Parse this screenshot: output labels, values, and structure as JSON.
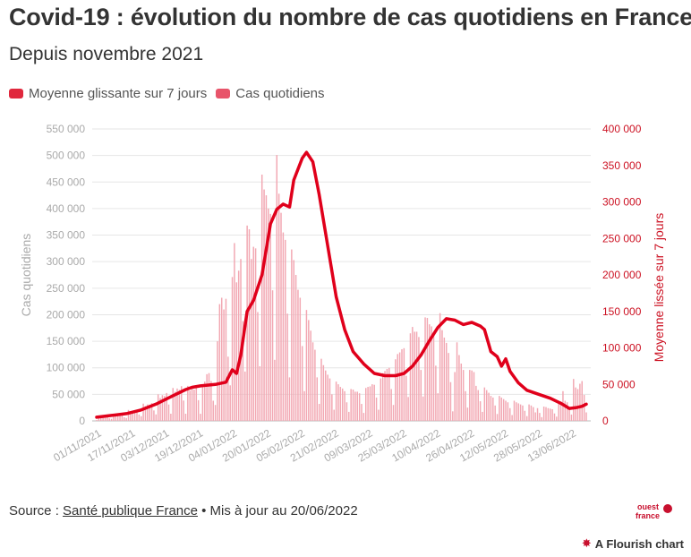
{
  "header": {
    "title": "Covid-19 : évolution du nombre de cas quotidiens en France",
    "subtitle": "Depuis novembre 2021"
  },
  "legend": [
    {
      "label": "Moyenne glissante sur 7 jours",
      "color": "#e0283d"
    },
    {
      "label": "Cas quotidiens",
      "color": "#e8546a"
    }
  ],
  "footer": {
    "source_prefix": "Source : ",
    "source_link": "Santé publique France",
    "updated": " • Mis à jour au 20/06/2022",
    "logo_top": "ouest",
    "logo_bottom": "france",
    "flourish": "A Flourish chart"
  },
  "chart_data": {
    "type": "bar+line",
    "colors": {
      "bars": "#f2a7b2",
      "line": "#e0001b",
      "left_axis": "#aaaaaa",
      "right_axis": "#cc1122"
    },
    "y_left": {
      "label": "Cas quotidiens",
      "range": [
        0,
        550000
      ],
      "ticks": [
        0,
        50000,
        100000,
        150000,
        200000,
        250000,
        300000,
        350000,
        400000,
        450000,
        500000,
        550000
      ],
      "tick_labels": [
        "0",
        "50 000",
        "100 000",
        "150 000",
        "200 000",
        "250 000",
        "300 000",
        "350 000",
        "400 000",
        "450 000",
        "500 000",
        "550 000"
      ]
    },
    "y_right": {
      "label": "Moyenne lissée sur 7 jours",
      "range": [
        0,
        400000
      ],
      "ticks": [
        0,
        50000,
        100000,
        150000,
        200000,
        250000,
        300000,
        350000,
        400000
      ],
      "tick_labels": [
        "0",
        "50 000",
        "100 000",
        "150 000",
        "200 000",
        "250 000",
        "300 000",
        "350 000",
        "400 000"
      ]
    },
    "x": {
      "start": "2021-11-01",
      "end": "2022-06-20",
      "tick_labels": [
        "01/11/2021",
        "17/11/2021",
        "03/12/2021",
        "19/12/2021",
        "04/01/2022",
        "20/01/2022",
        "05/02/2022",
        "21/02/2022",
        "09/03/2022",
        "25/03/2022",
        "10/04/2022",
        "26/04/2022",
        "12/05/2022",
        "28/05/2022",
        "13/06/2022"
      ]
    },
    "daily_cases_weekly": [
      {
        "date": "2021-11-01",
        "values": [
          1500,
          8800,
          7500,
          7200,
          6800,
          7900,
          4900
        ]
      },
      {
        "date": "2021-11-08",
        "values": [
          3800,
          12800,
          10000,
          10800,
          10900,
          11300,
          6800
        ]
      },
      {
        "date": "2021-11-15",
        "values": [
          5500,
          20600,
          17100,
          18900,
          19000,
          19700,
          12000
        ]
      },
      {
        "date": "2021-11-22",
        "values": [
          8800,
          32500,
          28000,
          31000,
          30700,
          33500,
          19700
        ]
      },
      {
        "date": "2021-11-29",
        "values": [
          12200,
          50000,
          43000,
          48500,
          46800,
          52500,
          30800
        ]
      },
      {
        "date": "2021-12-06",
        "values": [
          13500,
          62000,
          55000,
          61000,
          58400,
          65400,
          38300
        ]
      },
      {
        "date": "2021-12-13",
        "values": [
          13500,
          66000,
          57000,
          63800,
          59000,
          67000,
          39000
        ]
      },
      {
        "date": "2021-12-20",
        "values": [
          13300,
          68000,
          74000,
          88000,
          90000,
          75000,
          38000
        ]
      },
      {
        "date": "2021-12-27",
        "values": [
          30000,
          150000,
          220000,
          232000,
          210000,
          230000,
          121000
        ]
      },
      {
        "date": "2022-01-03",
        "values": [
          67000,
          271000,
          335000,
          261000,
          283000,
          305000,
          188000
        ]
      },
      {
        "date": "2022-01-10",
        "values": [
          93000,
          368000,
          361000,
          305000,
          328000,
          325000,
          205000
        ]
      },
      {
        "date": "2022-01-17",
        "values": [
          103000,
          464000,
          436000,
          425000,
          400000,
          390000,
          246000
        ]
      },
      {
        "date": "2022-01-24",
        "values": [
          115000,
          501000,
          428000,
          392000,
          355000,
          341000,
          202000
        ]
      },
      {
        "date": "2022-01-31",
        "values": [
          82000,
          323000,
          303000,
          275000,
          247000,
          232000,
          141000
        ]
      },
      {
        "date": "2022-02-07",
        "values": [
          56000,
          209000,
          190000,
          170000,
          148000,
          134000,
          82000
        ]
      },
      {
        "date": "2022-02-14",
        "values": [
          32000,
          117000,
          105000,
          95000,
          87000,
          80000,
          50000
        ]
      },
      {
        "date": "2022-02-21",
        "values": [
          21000,
          74000,
          69000,
          64000,
          61000,
          56000,
          35000
        ]
      },
      {
        "date": "2022-02-28",
        "values": [
          17000,
          60000,
          59000,
          55000,
          55000,
          52000,
          32000
        ]
      },
      {
        "date": "2022-03-07",
        "values": [
          15000,
          62000,
          64000,
          65000,
          69000,
          68000,
          44000
        ]
      },
      {
        "date": "2022-03-14",
        "values": [
          21000,
          80000,
          90000,
          94000,
          98000,
          100000,
          60000
        ]
      },
      {
        "date": "2022-03-21",
        "values": [
          30000,
          116000,
          126000,
          129000,
          135000,
          137000,
          85000
        ]
      },
      {
        "date": "2022-03-28",
        "values": [
          45000,
          165000,
          177000,
          168000,
          168000,
          158000,
          96000
        ]
      },
      {
        "date": "2022-04-04",
        "values": [
          46000,
          195000,
          194000,
          182000,
          178000,
          166000,
          104000
        ]
      },
      {
        "date": "2022-04-11",
        "values": [
          52000,
          203000,
          171000,
          157000,
          147000,
          128000,
          73000
        ]
      },
      {
        "date": "2022-04-18",
        "values": [
          18000,
          92000,
          148000,
          124000,
          108000,
          96000,
          56000
        ]
      },
      {
        "date": "2022-04-25",
        "values": [
          25000,
          96000,
          95000,
          92000,
          66000,
          58000,
          37000
        ]
      },
      {
        "date": "2022-05-02",
        "values": [
          17000,
          63000,
          58000,
          53000,
          47000,
          44000,
          29000
        ]
      },
      {
        "date": "2022-05-09",
        "values": [
          13000,
          47000,
          44000,
          41000,
          38000,
          35000,
          24000
        ]
      },
      {
        "date": "2022-05-16",
        "values": [
          11000,
          38000,
          35000,
          33000,
          31000,
          29000,
          19000
        ]
      },
      {
        "date": "2022-05-23",
        "values": [
          9000,
          31000,
          29000,
          26000,
          16000,
          24000,
          15000
        ]
      },
      {
        "date": "2022-05-30",
        "values": [
          7000,
          27000,
          26000,
          24000,
          23000,
          22000,
          14000
        ]
      },
      {
        "date": "2022-06-06",
        "values": [
          8000,
          32000,
          37000,
          56000,
          38000,
          35000,
          22000
        ]
      },
      {
        "date": "2022-06-13",
        "values": [
          12000,
          79000,
          63000,
          60000,
          70000,
          75000,
          49000
        ]
      },
      {
        "date": "2022-06-20",
        "values": [
          16000
        ]
      }
    ],
    "moving_average": [
      {
        "date": "2021-11-01",
        "value": 5000
      },
      {
        "date": "2021-11-08",
        "value": 7500
      },
      {
        "date": "2021-11-15",
        "value": 10000
      },
      {
        "date": "2021-11-22",
        "value": 15000
      },
      {
        "date": "2021-11-29",
        "value": 23000
      },
      {
        "date": "2021-12-06",
        "value": 33000
      },
      {
        "date": "2021-12-13",
        "value": 43000
      },
      {
        "date": "2021-12-16",
        "value": 46000
      },
      {
        "date": "2021-12-20",
        "value": 48000
      },
      {
        "date": "2021-12-27",
        "value": 50000
      },
      {
        "date": "2022-01-01",
        "value": 53000
      },
      {
        "date": "2022-01-04",
        "value": 70000
      },
      {
        "date": "2022-01-06",
        "value": 65000
      },
      {
        "date": "2022-01-08",
        "value": 90000
      },
      {
        "date": "2022-01-11",
        "value": 150000
      },
      {
        "date": "2022-01-14",
        "value": 165000
      },
      {
        "date": "2022-01-18",
        "value": 200000
      },
      {
        "date": "2022-01-22",
        "value": 270000
      },
      {
        "date": "2022-01-25",
        "value": 290000
      },
      {
        "date": "2022-01-28",
        "value": 297000
      },
      {
        "date": "2022-01-31",
        "value": 293000
      },
      {
        "date": "2022-02-02",
        "value": 330000
      },
      {
        "date": "2022-02-06",
        "value": 360000
      },
      {
        "date": "2022-02-08",
        "value": 368000
      },
      {
        "date": "2022-02-11",
        "value": 355000
      },
      {
        "date": "2022-02-14",
        "value": 310000
      },
      {
        "date": "2022-02-18",
        "value": 240000
      },
      {
        "date": "2022-02-22",
        "value": 170000
      },
      {
        "date": "2022-02-26",
        "value": 125000
      },
      {
        "date": "2022-03-02",
        "value": 95000
      },
      {
        "date": "2022-03-07",
        "value": 78000
      },
      {
        "date": "2022-03-12",
        "value": 65000
      },
      {
        "date": "2022-03-17",
        "value": 62000
      },
      {
        "date": "2022-03-22",
        "value": 62000
      },
      {
        "date": "2022-03-26",
        "value": 65000
      },
      {
        "date": "2022-03-30",
        "value": 75000
      },
      {
        "date": "2022-04-03",
        "value": 90000
      },
      {
        "date": "2022-04-07",
        "value": 110000
      },
      {
        "date": "2022-04-11",
        "value": 128000
      },
      {
        "date": "2022-04-15",
        "value": 140000
      },
      {
        "date": "2022-04-19",
        "value": 138000
      },
      {
        "date": "2022-04-23",
        "value": 132000
      },
      {
        "date": "2022-04-27",
        "value": 135000
      },
      {
        "date": "2022-05-01",
        "value": 130000
      },
      {
        "date": "2022-05-03",
        "value": 125000
      },
      {
        "date": "2022-05-06",
        "value": 95000
      },
      {
        "date": "2022-05-09",
        "value": 88000
      },
      {
        "date": "2022-05-11",
        "value": 75000
      },
      {
        "date": "2022-05-13",
        "value": 85000
      },
      {
        "date": "2022-05-15",
        "value": 68000
      },
      {
        "date": "2022-05-19",
        "value": 52000
      },
      {
        "date": "2022-05-23",
        "value": 42000
      },
      {
        "date": "2022-05-29",
        "value": 36000
      },
      {
        "date": "2022-06-03",
        "value": 31000
      },
      {
        "date": "2022-06-08",
        "value": 24000
      },
      {
        "date": "2022-06-12",
        "value": 17000
      },
      {
        "date": "2022-06-15",
        "value": 18000
      },
      {
        "date": "2022-06-18",
        "value": 20000
      },
      {
        "date": "2022-06-20",
        "value": 23000
      }
    ]
  }
}
